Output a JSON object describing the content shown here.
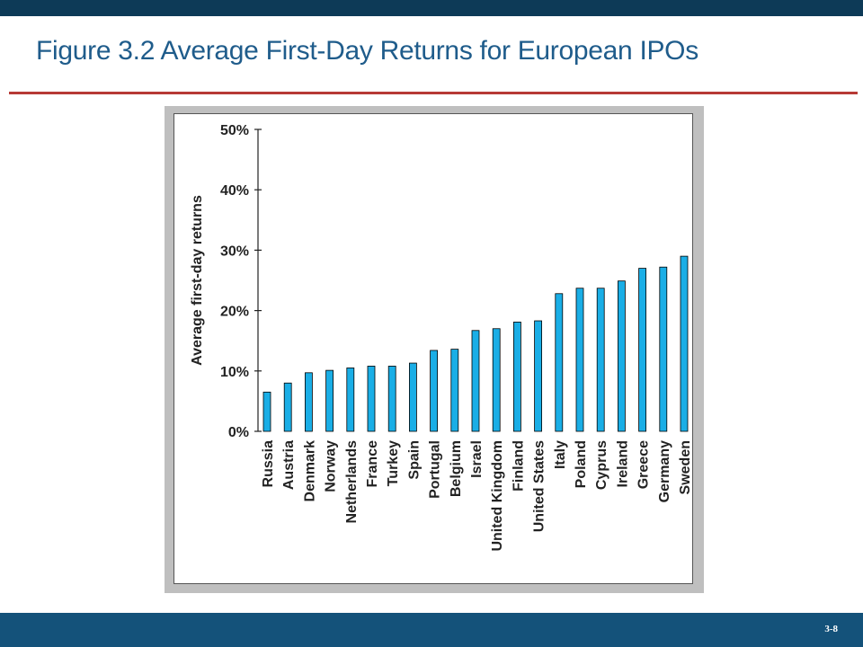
{
  "slide": {
    "title": "Figure 3.2 Average First-Day Returns for European IPOs",
    "number": "3-8"
  },
  "colors": {
    "top_bar": "#0d3a57",
    "title": "#1f5c8b",
    "rule": "#b73a35",
    "bottom_bar": "#14527a",
    "bar_fill": "#1aaee6",
    "bar_stroke": "#000000"
  },
  "chart_data": {
    "type": "bar",
    "ylabel": "Average first-day returns",
    "xlabel": "",
    "ylim": [
      0,
      50
    ],
    "yticks": [
      "0%",
      "10%",
      "20%",
      "30%",
      "40%",
      "50%"
    ],
    "ytick_values": [
      0,
      10,
      20,
      30,
      40,
      50
    ],
    "categories": [
      "Russia",
      "Austria",
      "Denmark",
      "Norway",
      "Netherlands",
      "France",
      "Turkey",
      "Spain",
      "Portugal",
      "Belgium",
      "Israel",
      "United Kingdom",
      "Finland",
      "United States",
      "Italy",
      "Poland",
      "Cyprus",
      "Ireland",
      "Greece",
      "Germany",
      "Sweden"
    ],
    "values": [
      6.5,
      8,
      9.7,
      10.1,
      10.5,
      10.8,
      10.8,
      11.3,
      13.4,
      13.6,
      16.7,
      17,
      18.1,
      18.3,
      22.8,
      23.7,
      23.7,
      24.9,
      27,
      27.2,
      29
    ]
  }
}
